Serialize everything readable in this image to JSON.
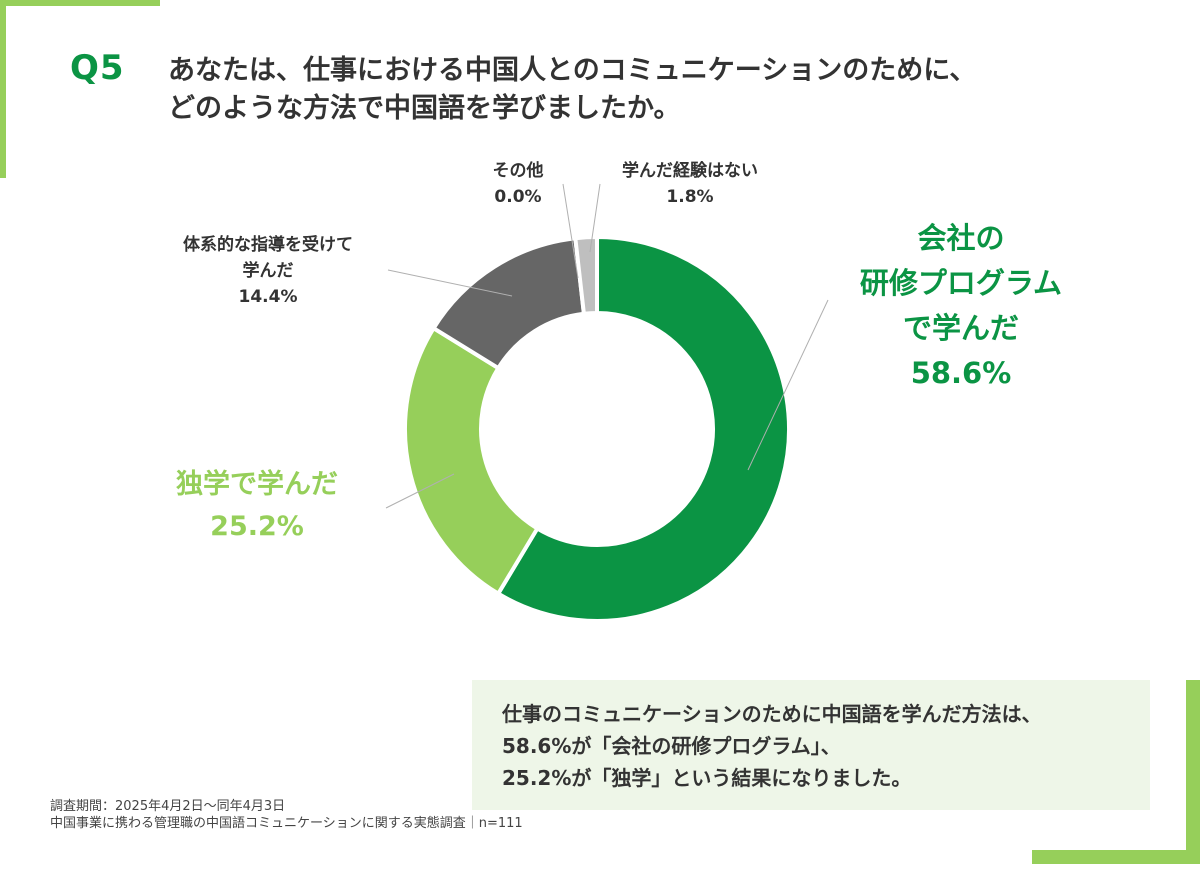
{
  "header": {
    "q_number": "Q5",
    "question_line1": "あなたは、仕事における中国人とのコミュニケーションのために、",
    "question_line2": "どのような方法で中国語を学びましたか。"
  },
  "colors": {
    "brand_green": "#0b9444",
    "light_green": "#96cf5a",
    "dark_gray": "#666666",
    "light_gray": "#bfbfbf",
    "summary_bg": "#eef6e8"
  },
  "chart_data": {
    "type": "pie",
    "style": "donut",
    "slices": [
      {
        "label_lines": [
          "会社の",
          "研修プログラム",
          "で学んだ"
        ],
        "value": 58.6,
        "value_label": "58.6%",
        "color": "#0b9444"
      },
      {
        "label_lines": [
          "独学で学んだ"
        ],
        "value": 25.2,
        "value_label": "25.2%",
        "color": "#96cf5a"
      },
      {
        "label_lines": [
          "体系的な指導を受けて",
          "学んだ"
        ],
        "value": 14.4,
        "value_label": "14.4%",
        "color": "#666666"
      },
      {
        "label_lines": [
          "その他"
        ],
        "value": 0.0,
        "value_label": "0.0%",
        "color": "#bfbfbf"
      },
      {
        "label_lines": [
          "学んだ経験はない"
        ],
        "value": 1.8,
        "value_label": "1.8%",
        "color": "#bfbfbf"
      }
    ],
    "start": "top",
    "direction": "clockwise"
  },
  "summary": {
    "line1": "仕事のコミュニケーションのために中国語を学んだ方法は、",
    "line2": "58.6%が「会社の研修プログラム」、",
    "line3": "25.2%が「独学」という結果になりました。"
  },
  "footnote": {
    "line1": "調査期間：2025年4月2日〜同年4月3日",
    "line2": "中国事業に携わる管理職の中国語コミュニケーションに関する実態調査｜n=111"
  }
}
